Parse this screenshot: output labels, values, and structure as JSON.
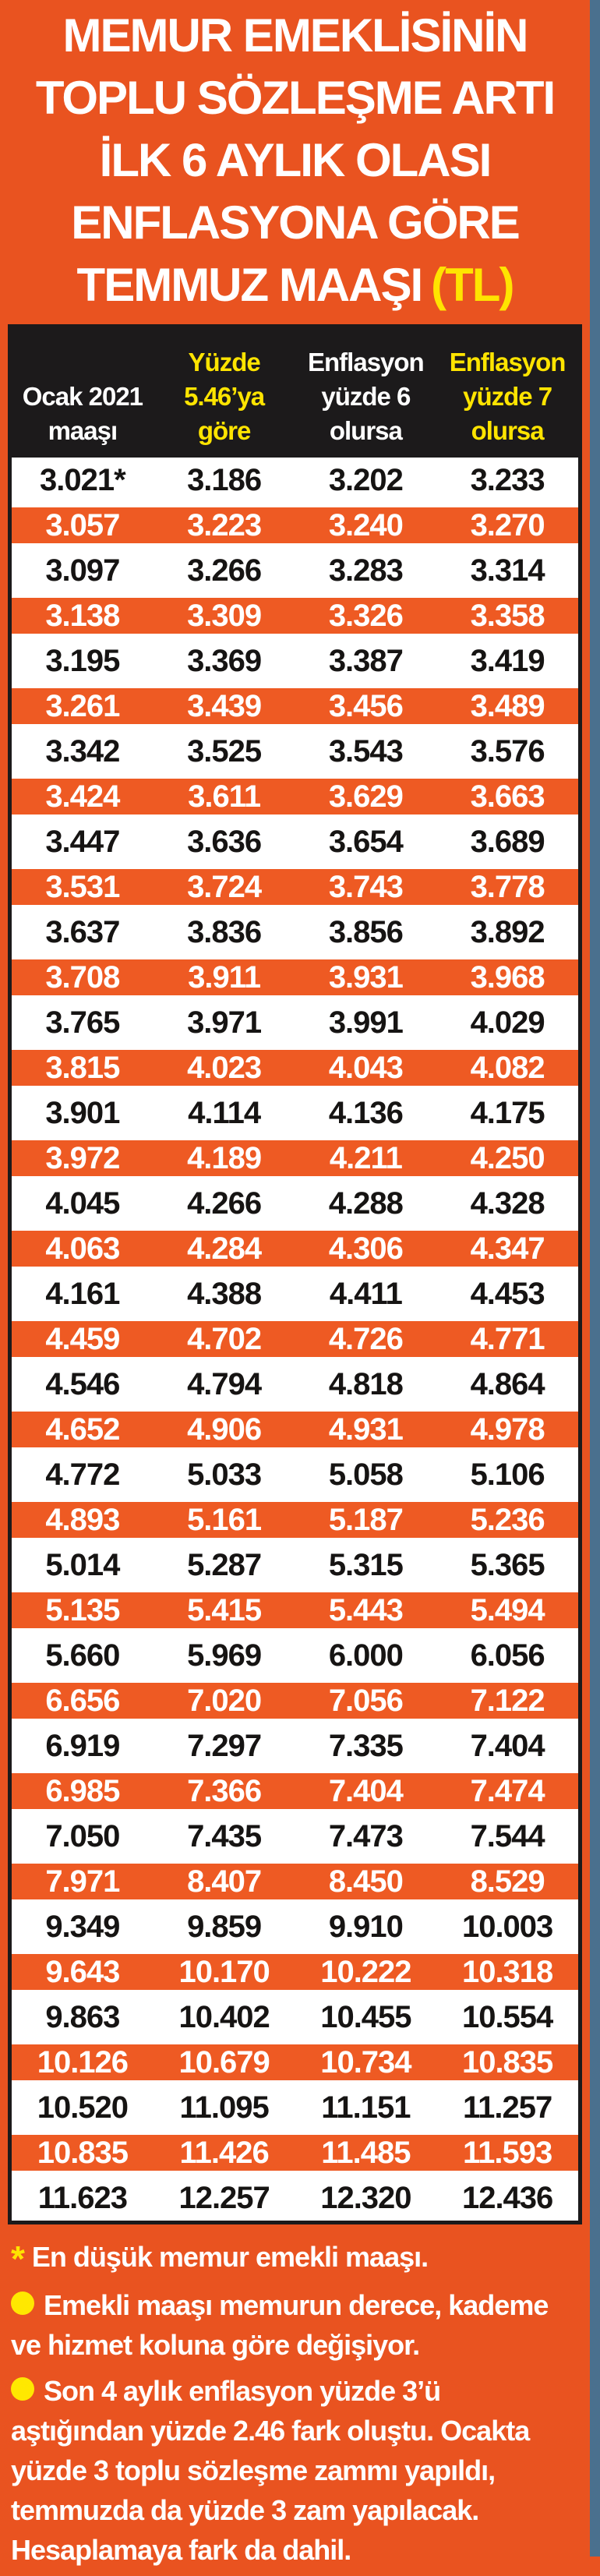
{
  "title": {
    "lines": [
      "MEMUR EMEKLİSİNİN",
      "TOPLU SÖZLEŞME ARTI",
      "İLK 6 AYLIK OLASI",
      "ENFLASYONA GÖRE"
    ],
    "last_line_main": "TEMMUZ MAAŞI",
    "last_line_unit": "(TL)"
  },
  "colors": {
    "background_orange": "#E95320",
    "row_orange": "#EE5A23",
    "header_black": "#1C1A1B",
    "accent_yellow": "#FFE400",
    "edge_strip_blue": "#4A708E"
  },
  "table_headers": [
    {
      "lines": [
        "Ocak 2021",
        "maaşı"
      ],
      "tone": "white"
    },
    {
      "lines": [
        "Yüzde",
        "5.46’ya",
        "göre"
      ],
      "tone": "yellow"
    },
    {
      "lines": [
        "Enflasyon",
        "yüzde 6",
        "olursa"
      ],
      "tone": "white"
    },
    {
      "lines": [
        "Enflasyon",
        "yüzde 7",
        "olursa"
      ],
      "tone": "yellow"
    }
  ],
  "chart_data": {
    "type": "table",
    "title": "MEMUR EMEKLİSİNİN TOPLU SÖZLEŞME ARTI İLK 6 AYLIK OLASI ENFLASYONA GÖRE TEMMUZ MAAŞI (TL)",
    "columns": [
      "Ocak 2021 maaşı",
      "Yüzde 5.46’ya göre",
      "Enflasyon yüzde 6 olursa",
      "Enflasyon yüzde 7 olursa"
    ],
    "rows": [
      [
        "3.021*",
        "3.186",
        "3.202",
        "3.233"
      ],
      [
        "3.057",
        "3.223",
        "3.240",
        "3.270"
      ],
      [
        "3.097",
        "3.266",
        "3.283",
        "3.314"
      ],
      [
        "3.138",
        "3.309",
        "3.326",
        "3.358"
      ],
      [
        "3.195",
        "3.369",
        "3.387",
        "3.419"
      ],
      [
        "3.261",
        "3.439",
        "3.456",
        "3.489"
      ],
      [
        "3.342",
        "3.525",
        "3.543",
        "3.576"
      ],
      [
        "3.424",
        "3.611",
        "3.629",
        "3.663"
      ],
      [
        "3.447",
        "3.636",
        "3.654",
        "3.689"
      ],
      [
        "3.531",
        "3.724",
        "3.743",
        "3.778"
      ],
      [
        "3.637",
        "3.836",
        "3.856",
        "3.892"
      ],
      [
        "3.708",
        "3.911",
        "3.931",
        "3.968"
      ],
      [
        "3.765",
        "3.971",
        "3.991",
        "4.029"
      ],
      [
        "3.815",
        "4.023",
        "4.043",
        "4.082"
      ],
      [
        "3.901",
        "4.114",
        "4.136",
        "4.175"
      ],
      [
        "3.972",
        "4.189",
        "4.211",
        "4.250"
      ],
      [
        "4.045",
        "4.266",
        "4.288",
        "4.328"
      ],
      [
        "4.063",
        "4.284",
        "4.306",
        "4.347"
      ],
      [
        "4.161",
        "4.388",
        "4.411",
        "4.453"
      ],
      [
        "4.459",
        "4.702",
        "4.726",
        "4.771"
      ],
      [
        "4.546",
        "4.794",
        "4.818",
        "4.864"
      ],
      [
        "4.652",
        "4.906",
        "4.931",
        "4.978"
      ],
      [
        "4.772",
        "5.033",
        "5.058",
        "5.106"
      ],
      [
        "4.893",
        "5.161",
        "5.187",
        "5.236"
      ],
      [
        "5.014",
        "5.287",
        "5.315",
        "5.365"
      ],
      [
        "5.135",
        "5.415",
        "5.443",
        "5.494"
      ],
      [
        "5.660",
        "5.969",
        "6.000",
        "6.056"
      ],
      [
        "6.656",
        "7.020",
        "7.056",
        "7.122"
      ],
      [
        "6.919",
        "7.297",
        "7.335",
        "7.404"
      ],
      [
        "6.985",
        "7.366",
        "7.404",
        "7.474"
      ],
      [
        "7.050",
        "7.435",
        "7.473",
        "7.544"
      ],
      [
        "7.971",
        "8.407",
        "8.450",
        "8.529"
      ],
      [
        "9.349",
        "9.859",
        "9.910",
        "10.003"
      ],
      [
        "9.643",
        "10.170",
        "10.222",
        "10.318"
      ],
      [
        "9.863",
        "10.402",
        "10.455",
        "10.554"
      ],
      [
        "10.126",
        "10.679",
        "10.734",
        "10.835"
      ],
      [
        "10.520",
        "11.095",
        "11.151",
        "11.257"
      ],
      [
        "10.835",
        "11.426",
        "11.485",
        "11.593"
      ],
      [
        "11.623",
        "12.257",
        "12.320",
        "12.436"
      ]
    ]
  },
  "footnotes": {
    "star_marker": "*",
    "star_text": "En düşük memur emekli maaşı.",
    "bullet1": "Emekli maaşı memurun derece, kademe ve hizmet koluna göre değişiyor.",
    "bullet2": "Son 4 aylık enflasyon yüzde 3’ü aştığından yüzde 2.46 fark oluştu. Ocakta yüzde 3 toplu sözleşme zammı yapıldı, temmuzda da yüzde 3 zam yapılacak. Hesaplamaya fark da dahil."
  }
}
